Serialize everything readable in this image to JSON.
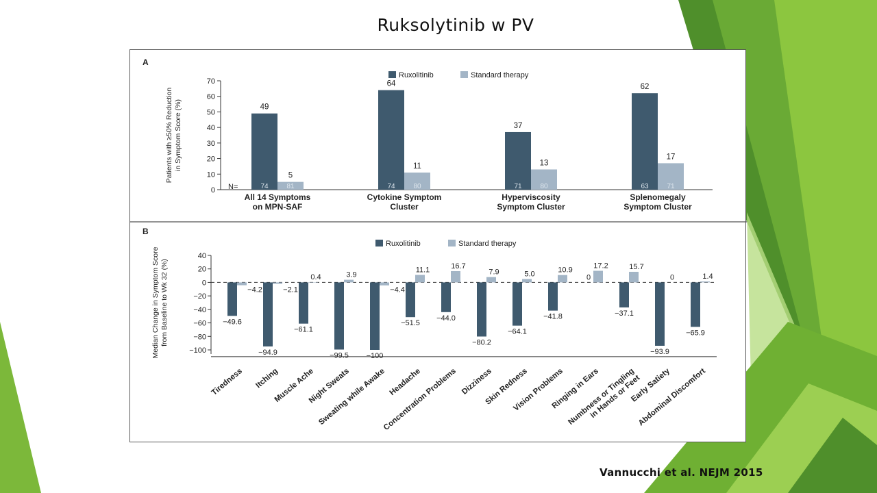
{
  "slide": {
    "title": "Ruksolytinib w PV",
    "citation": "Vannucchi et al. NEJM 2015"
  },
  "colors": {
    "ruxolitinib": "#3f5a6e",
    "standard": "#a3b5c6",
    "green_dark": "#3e7a2a",
    "green_mid": "#5ea62f",
    "green_light": "#8cc63f"
  },
  "chart_data": [
    {
      "type": "bar",
      "panel_label": "A",
      "ylabel": "Patients with ≥50% Reduction in Symptom Score (%)",
      "ylim": [
        0,
        70
      ],
      "yticks": [
        0,
        10,
        20,
        30,
        40,
        50,
        60,
        70
      ],
      "n_label": "N=",
      "legend": [
        "Ruxolitinib",
        "Standard therapy"
      ],
      "legend_position": "top-center",
      "categories": [
        [
          "All 14 Symptoms",
          "on MPN-SAF"
        ],
        [
          "Cytokine Symptom",
          "Cluster"
        ],
        [
          "Hyperviscosity",
          "Symptom Cluster"
        ],
        [
          "Splenomegaly",
          "Symptom Cluster"
        ]
      ],
      "series": [
        {
          "name": "Ruxolitinib",
          "values": [
            49,
            64,
            37,
            62
          ],
          "labels": [
            "49",
            "64",
            "37",
            "62"
          ],
          "n": [
            "74",
            "74",
            "71",
            "63"
          ]
        },
        {
          "name": "Standard therapy",
          "values": [
            5,
            11,
            13,
            17
          ],
          "labels": [
            "5",
            "11",
            "13",
            "17"
          ],
          "n": [
            "81",
            "80",
            "80",
            "71"
          ]
        }
      ]
    },
    {
      "type": "bar",
      "panel_label": "B",
      "ylabel": "Median Change in Symptom Score from Baseline to Wk 32 (%)",
      "ylim": [
        -110,
        40
      ],
      "yticks": [
        40,
        20,
        0,
        -20,
        -40,
        -60,
        -80,
        -100
      ],
      "legend": [
        "Ruxolitinib",
        "Standard therapy"
      ],
      "legend_position": "top-center",
      "categories": [
        [
          "Tiredness"
        ],
        [
          "Itching"
        ],
        [
          "Muscle Ache"
        ],
        [
          "Night Sweats"
        ],
        [
          "Sweating while Awake"
        ],
        [
          "Headache"
        ],
        [
          "Concentration Problems"
        ],
        [
          "Dizziness"
        ],
        [
          "Skin Redness"
        ],
        [
          "Vision Problems"
        ],
        [
          "Ringing in Ears"
        ],
        [
          "Numbness or Tingling",
          "in Hands or Feet"
        ],
        [
          "Early Satiety"
        ],
        [
          "Abdominal Discomfort"
        ]
      ],
      "series": [
        {
          "name": "Ruxolitinib",
          "values": [
            -49.6,
            -94.9,
            -61.1,
            -99.5,
            -100,
            -51.5,
            -44.0,
            -80.2,
            -64.1,
            -41.8,
            0,
            -37.1,
            -93.9,
            -65.9
          ],
          "labels": [
            "−49.6",
            "−94.9",
            "−61.1",
            "−99.5",
            "−100",
            "−51.5",
            "−44.0",
            "−80.2",
            "−64.1",
            "−41.8",
            "0",
            "−37.1",
            "−93.9",
            "−65.9"
          ]
        },
        {
          "name": "Standard therapy",
          "values": [
            -4.2,
            -2.1,
            0.4,
            3.9,
            -4.4,
            11.1,
            16.7,
            7.9,
            5.0,
            10.9,
            17.2,
            15.7,
            0,
            1.4
          ],
          "labels": [
            "−4.2",
            "−2.1",
            "0.4",
            "3.9",
            "−4.4",
            "11.1",
            "16.7",
            "7.9",
            "5.0",
            "10.9",
            "17.2",
            "15.7",
            "0",
            "1.4"
          ]
        }
      ]
    }
  ]
}
